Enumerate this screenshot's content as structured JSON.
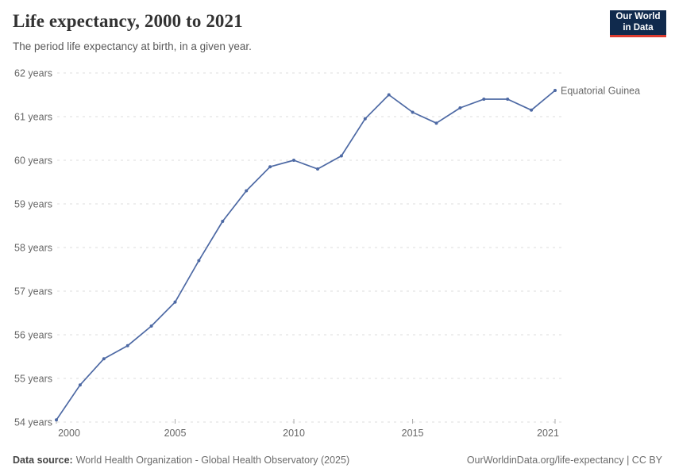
{
  "header": {
    "title": "Life expectancy, 2000 to 2021",
    "subtitle": "The period life expectancy at birth, in a given year."
  },
  "logo": {
    "line1": "Our World",
    "line2": "in Data",
    "bg_color": "#102a4d",
    "accent_color": "#dc3b2f"
  },
  "chart_data": {
    "type": "line",
    "title": "Life expectancy, 2000 to 2021",
    "subtitle": "The period life expectancy at birth, in a given year.",
    "xlabel": "",
    "ylabel": "",
    "x": [
      2000,
      2001,
      2002,
      2003,
      2004,
      2005,
      2006,
      2007,
      2008,
      2009,
      2010,
      2011,
      2012,
      2013,
      2014,
      2015,
      2016,
      2017,
      2018,
      2019,
      2020,
      2021
    ],
    "series": [
      {
        "name": "Equatorial Guinea",
        "color": "#4d69a4",
        "values": [
          54.05,
          54.85,
          55.45,
          55.75,
          56.2,
          56.75,
          57.7,
          58.6,
          59.3,
          59.85,
          60.0,
          59.8,
          60.1,
          60.95,
          61.5,
          61.1,
          60.85,
          61.2,
          61.4,
          61.4,
          61.15,
          61.6
        ]
      }
    ],
    "xlim": [
      2000,
      2021
    ],
    "ylim": [
      54,
      62
    ],
    "x_ticks": [
      {
        "v": 2000,
        "label": "2000"
      },
      {
        "v": 2005,
        "label": "2005"
      },
      {
        "v": 2010,
        "label": "2010"
      },
      {
        "v": 2015,
        "label": "2015"
      },
      {
        "v": 2021,
        "label": "2021"
      }
    ],
    "y_ticks": [
      {
        "v": 54,
        "label": "54 years"
      },
      {
        "v": 55,
        "label": "55 years"
      },
      {
        "v": 56,
        "label": "56 years"
      },
      {
        "v": 57,
        "label": "57 years"
      },
      {
        "v": 58,
        "label": "58 years"
      },
      {
        "v": 59,
        "label": "59 years"
      },
      {
        "v": 60,
        "label": "60 years"
      },
      {
        "v": 61,
        "label": "61 years"
      },
      {
        "v": 62,
        "label": "62 years"
      }
    ],
    "grid": "horizontal-dashed",
    "grid_color": "#dcdcdc",
    "tick_color": "#a8a8a8",
    "legend_position": "label-at-line-end"
  },
  "footer": {
    "source_label": "Data source:",
    "source_text": "World Health Organization - Global Health Observatory (2025)",
    "credit": "OurWorldinData.org/life-expectancy | CC BY"
  }
}
